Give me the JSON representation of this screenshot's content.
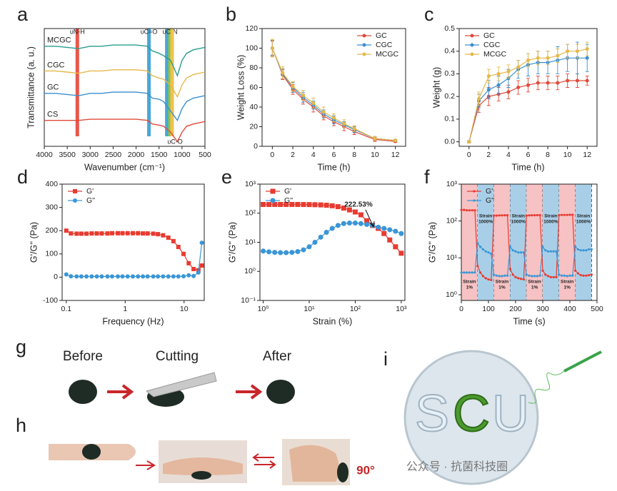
{
  "chart_data": [
    {
      "type": "line",
      "label": "a",
      "xlabel": "Wavenumber (cm⁻¹)",
      "ylabel": "Transmittance (a. u.)",
      "x": [
        4000,
        3750,
        3500,
        3250,
        3000,
        2750,
        2500,
        2250,
        2000,
        1750,
        1650,
        1500,
        1400,
        1250,
        1100,
        1000,
        900,
        750,
        500
      ],
      "xlim": [
        4000,
        500
      ],
      "xticks": [
        4000,
        3500,
        3000,
        2500,
        2000,
        1500,
        1000,
        500
      ],
      "ylim": [
        0,
        100
      ],
      "legend": "inline",
      "series": [
        {
          "name": "MCGC",
          "color": "#2a9d8f",
          "values": [
            85,
            85,
            84,
            83,
            85,
            85,
            86,
            86,
            86,
            85,
            81,
            79,
            77,
            73,
            60,
            73,
            79,
            82,
            84
          ]
        },
        {
          "name": "CGC",
          "color": "#e6b84a",
          "values": [
            64,
            64,
            63,
            62,
            64,
            64,
            65,
            65,
            65,
            64,
            60,
            58,
            57,
            52,
            42,
            52,
            58,
            61,
            63
          ]
        },
        {
          "name": "GC",
          "color": "#3a8fd0",
          "values": [
            45,
            45,
            44,
            43,
            45,
            45,
            46,
            46,
            46,
            45,
            41,
            40,
            38,
            30,
            22,
            32,
            38,
            41,
            43
          ]
        },
        {
          "name": "CS",
          "color": "#e04a3a",
          "values": [
            22,
            22,
            22,
            22,
            23,
            23,
            23,
            23,
            23,
            22,
            19,
            18,
            17,
            12,
            4,
            12,
            17,
            19,
            21
          ]
        }
      ],
      "bands": [
        {
          "x": 3280,
          "color": "#e8564b",
          "label": "υN-H",
          "position": "top"
        },
        {
          "x": 1720,
          "color": "#49a6d8",
          "label": "υC=O",
          "position": "top"
        },
        {
          "x": 1330,
          "color": "#49a6d8"
        },
        {
          "x": 1260,
          "color": "#8cc63f",
          "label": "υC-N",
          "position": "top"
        },
        {
          "x": 1215,
          "color": "#f2c14e",
          "label": "υC-O",
          "position": "bottom"
        }
      ]
    },
    {
      "type": "line",
      "label": "b",
      "xlabel": "Time (h)",
      "ylabel": "Weight Loss (%)",
      "x": [
        0,
        1,
        2,
        3,
        4,
        5,
        6,
        7,
        8,
        10,
        12
      ],
      "xlim": [
        -1,
        13
      ],
      "xticks": [
        0,
        2,
        4,
        6,
        8,
        10,
        12
      ],
      "ylim": [
        0,
        120
      ],
      "yticks": [
        0,
        20,
        40,
        60,
        80,
        100,
        120
      ],
      "legend": "upper right",
      "series": [
        {
          "name": "GC",
          "color": "#e04a3a",
          "marker": "circle",
          "values": [
            100,
            73,
            58,
            48,
            40,
            31,
            25,
            20,
            15,
            7,
            5
          ],
          "errors": [
            8,
            5,
            5,
            5,
            5,
            4,
            4,
            4,
            3,
            2,
            1
          ]
        },
        {
          "name": "CGC",
          "color": "#3a8fd0",
          "marker": "circle",
          "values": [
            100,
            74,
            60,
            50,
            42,
            33,
            27,
            22,
            17,
            8,
            6
          ],
          "errors": [
            7,
            5,
            5,
            5,
            4,
            4,
            4,
            3,
            3,
            2,
            1
          ]
        },
        {
          "name": "MCGC",
          "color": "#e6b84a",
          "marker": "circle",
          "values": [
            100,
            75,
            61,
            52,
            44,
            35,
            29,
            23,
            18,
            8,
            6
          ],
          "errors": [
            9,
            6,
            5,
            5,
            5,
            5,
            4,
            4,
            3,
            2,
            1
          ]
        }
      ]
    },
    {
      "type": "line",
      "label": "c",
      "xlabel": "Time (h)",
      "ylabel": "Weight (g)",
      "x": [
        0,
        1,
        2,
        3,
        4,
        5,
        6,
        7,
        8,
        9,
        10,
        11,
        12
      ],
      "xlim": [
        -1,
        13
      ],
      "xticks": [
        0,
        2,
        4,
        6,
        8,
        10,
        12
      ],
      "ylim": [
        -0.02,
        0.5
      ],
      "yticks": [
        {
          "value": 0,
          "label": "0.0"
        },
        0.1,
        0.2,
        0.3,
        0.4,
        0.5
      ],
      "legend": "upper left",
      "series": [
        {
          "name": "GC",
          "color": "#e04a3a",
          "marker": "circle",
          "values": [
            0,
            0.16,
            0.2,
            0.21,
            0.22,
            0.24,
            0.25,
            0.26,
            0.26,
            0.26,
            0.27,
            0.27,
            0.27
          ],
          "errors": [
            0.005,
            0.03,
            0.04,
            0.03,
            0.03,
            0.03,
            0.03,
            0.03,
            0.03,
            0.03,
            0.03,
            0.03,
            0.02
          ]
        },
        {
          "name": "CGC",
          "color": "#3a8fd0",
          "marker": "circle",
          "values": [
            0,
            0.18,
            0.23,
            0.25,
            0.28,
            0.32,
            0.34,
            0.35,
            0.35,
            0.36,
            0.37,
            0.37,
            0.37
          ],
          "errors": [
            0.005,
            0.03,
            0.04,
            0.04,
            0.04,
            0.04,
            0.05,
            0.05,
            0.05,
            0.06,
            0.06,
            0.07,
            0.06
          ]
        },
        {
          "name": "MCGC",
          "color": "#e6b84a",
          "marker": "circle",
          "values": [
            0,
            0.19,
            0.29,
            0.3,
            0.31,
            0.33,
            0.36,
            0.37,
            0.37,
            0.38,
            0.4,
            0.4,
            0.41
          ],
          "errors": [
            0.005,
            0.03,
            0.03,
            0.03,
            0.03,
            0.03,
            0.03,
            0.03,
            0.03,
            0.03,
            0.03,
            0.03,
            0.03
          ]
        }
      ]
    },
    {
      "type": "line",
      "label": "d",
      "xlabel": "Frequency (Hz)",
      "ylabel": "G'/G'' (Pa)",
      "xscale": "log",
      "x": [
        0.1,
        0.12,
        0.15,
        0.18,
        0.22,
        0.27,
        0.33,
        0.4,
        0.5,
        0.6,
        0.75,
        0.9,
        1.1,
        1.35,
        1.65,
        2,
        2.4,
        3,
        3.6,
        4.4,
        5.4,
        6.6,
        8,
        9.8,
        12,
        14.5,
        17.5,
        20
      ],
      "xlim": [
        0.085,
        22
      ],
      "xticks": [
        0.1,
        1,
        10
      ],
      "ylim": [
        -100,
        400
      ],
      "yticks": [
        -100,
        0,
        100,
        200,
        300,
        400
      ],
      "legend": "upper left",
      "series": [
        {
          "name": "G'",
          "color": "#e83b30",
          "marker": "square",
          "values": [
            200,
            188,
            187,
            187,
            187,
            188,
            188,
            188,
            188,
            189,
            189,
            189,
            189,
            189,
            189,
            188,
            188,
            187,
            185,
            180,
            170,
            155,
            130,
            100,
            60,
            35,
            30,
            50
          ]
        },
        {
          "name": "G''",
          "color": "#3a96d6",
          "marker": "circle",
          "values": [
            12,
            4,
            3,
            3,
            3,
            3,
            3,
            3,
            3,
            3,
            3,
            3,
            3,
            3,
            3,
            3,
            3,
            3,
            3,
            3,
            3,
            3,
            3,
            4,
            8,
            5,
            20,
            148
          ]
        }
      ]
    },
    {
      "type": "line",
      "label": "e",
      "xlabel": "Strain (%)",
      "ylabel": "G'/G'' (Pa)",
      "xscale": "log",
      "yscale": "log",
      "x": [
        1,
        1.33,
        1.78,
        2.37,
        3.16,
        4.22,
        5.62,
        7.5,
        10,
        13.3,
        17.8,
        23.7,
        31.6,
        42.2,
        56.2,
        75,
        100,
        133,
        178,
        237,
        316,
        422,
        562,
        750,
        1000
      ],
      "xlim": [
        0.85,
        1200
      ],
      "xticks": [
        {
          "value": 1,
          "label": "10⁰"
        },
        {
          "value": 10,
          "label": "10¹"
        },
        {
          "value": 100,
          "label": "10²"
        },
        {
          "value": 1000,
          "label": "10³"
        }
      ],
      "ylim": [
        0.1,
        1000
      ],
      "yticks": [
        {
          "value": 0.1,
          "label": "10⁻¹"
        },
        {
          "value": 1,
          "label": "10⁰"
        },
        {
          "value": 10,
          "label": "10¹"
        },
        {
          "value": 100,
          "label": "10²"
        },
        {
          "value": 1000,
          "label": "10³"
        }
      ],
      "legend": "upper left",
      "annotation": "222.53%",
      "series": [
        {
          "name": "G'",
          "color": "#e83b30",
          "marker": "square",
          "values": [
            200,
            200,
            200,
            200,
            200,
            200,
            200,
            199,
            198,
            196,
            193,
            188,
            180,
            168,
            150,
            130,
            110,
            88,
            55,
            38,
            30,
            20,
            12,
            7,
            4.2
          ]
        },
        {
          "name": "G''",
          "color": "#3a96d6",
          "marker": "circle",
          "values": [
            5,
            4.7,
            4.5,
            4.4,
            4.4,
            4.5,
            4.8,
            5.5,
            7,
            10,
            15,
            22,
            30,
            38,
            44,
            46,
            46,
            44,
            41,
            38,
            33,
            30,
            27,
            24,
            20
          ]
        }
      ]
    },
    {
      "type": "line",
      "label": "f",
      "xlabel": "Time (s)",
      "ylabel": "G'/G'' (Pa)",
      "yscale": "log",
      "x": [
        0,
        10,
        20,
        30,
        40,
        50,
        60,
        70,
        80,
        90,
        100,
        110,
        120,
        130,
        140,
        150,
        160,
        170,
        180,
        190,
        200,
        210,
        220,
        230,
        240,
        250,
        260,
        270,
        280,
        290,
        300,
        310,
        320,
        330,
        340,
        350,
        360,
        370,
        380,
        390,
        400,
        410,
        420,
        430,
        440,
        450,
        460,
        470,
        480
      ],
      "xlim": [
        0,
        500
      ],
      "xticks": [
        0,
        100,
        200,
        300,
        400,
        500
      ],
      "ylim": [
        0.7,
        1000
      ],
      "yticks": [
        {
          "value": 1,
          "label": "10⁰"
        },
        {
          "value": 10,
          "label": "10¹"
        },
        {
          "value": 100,
          "label": "10²"
        },
        {
          "value": 1000,
          "label": "10³"
        }
      ],
      "legend": "upper left",
      "regions": [
        {
          "from": 0,
          "to": 60,
          "color": "#f6c2c4",
          "label": [
            "Strain",
            "1%"
          ],
          "position": "bottom"
        },
        {
          "from": 60,
          "to": 120,
          "color": "#a9cfe8",
          "label": [
            "Strain",
            "1000%"
          ],
          "position": "top"
        },
        {
          "from": 120,
          "to": 180,
          "color": "#f6c2c4",
          "label": [
            "Strain",
            "1%"
          ],
          "position": "bottom"
        },
        {
          "from": 180,
          "to": 240,
          "color": "#a9cfe8",
          "label": [
            "Strain",
            "1000%"
          ],
          "position": "top"
        },
        {
          "from": 240,
          "to": 300,
          "color": "#f6c2c4",
          "label": [
            "Strain",
            "1%"
          ],
          "position": "bottom"
        },
        {
          "from": 300,
          "to": 360,
          "color": "#a9cfe8",
          "label": [
            "Strain",
            "1000%"
          ],
          "position": "top"
        },
        {
          "from": 360,
          "to": 420,
          "color": "#f6c2c4",
          "label": [
            "Strain",
            "1%"
          ],
          "position": "bottom"
        },
        {
          "from": 420,
          "to": 480,
          "color": "#a9cfe8",
          "label": [
            "Strain",
            "1000%"
          ],
          "position": "top"
        }
      ],
      "series": [
        {
          "name": "G'",
          "color": "#e83b30",
          "marker": "circle",
          "values": [
            200,
            200,
            195,
            195,
            195,
            195,
            6,
            4,
            3.2,
            2.8,
            2.6,
            2.5,
            140,
            140,
            142,
            142,
            143,
            143,
            5,
            3.5,
            3,
            2.8,
            2.7,
            2.6,
            140,
            142,
            143,
            143,
            144,
            144,
            4.5,
            3.5,
            3.2,
            3,
            3,
            3,
            145,
            146,
            146,
            146,
            147,
            147,
            4.5,
            3.8,
            3.4,
            3.3,
            3.3,
            3.4,
            3.5
          ]
        },
        {
          "name": "G''",
          "color": "#3a96d6",
          "marker": "circle",
          "values": [
            4,
            4,
            4,
            4,
            4,
            4,
            25,
            20,
            17,
            15,
            14,
            13,
            3.5,
            3.3,
            3.2,
            3.2,
            3.3,
            3.3,
            20,
            16,
            15,
            14,
            14,
            14,
            3.5,
            3.3,
            3.2,
            3.2,
            3.2,
            3.3,
            20,
            16,
            15,
            15,
            15,
            15,
            3.5,
            3.3,
            3.3,
            3.2,
            3.3,
            3.3,
            20,
            17,
            16,
            16,
            16,
            17,
            17
          ]
        }
      ]
    }
  ],
  "photo_panels": {
    "g": {
      "label": "g",
      "captions": [
        "Before",
        "Cutting",
        "After"
      ]
    },
    "h": {
      "label": "h",
      "angle": "90°"
    },
    "i": {
      "label": "i",
      "letters": [
        "S",
        "C",
        "U"
      ],
      "watermark": "公众号 · 抗菌科技圈"
    }
  }
}
